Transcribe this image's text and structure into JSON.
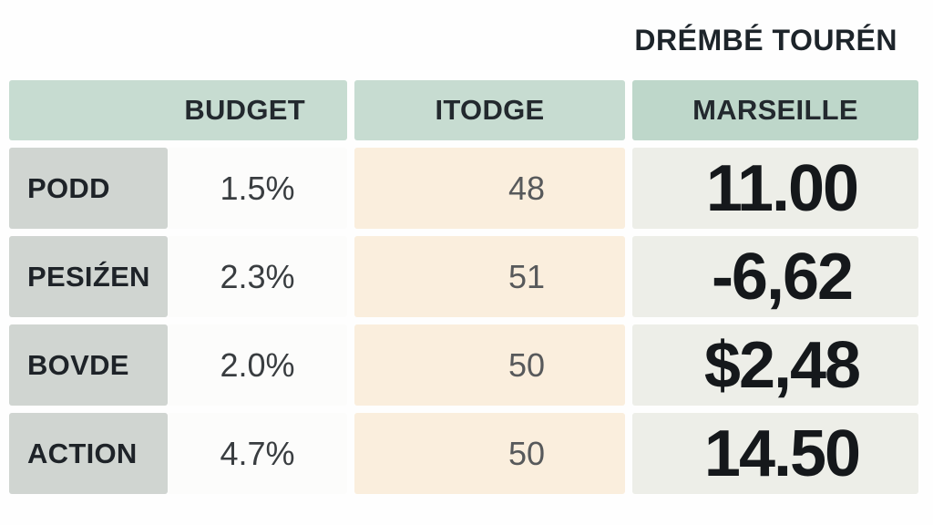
{
  "title": "DRÉMBÉ TOURÉN",
  "table": {
    "headers": [
      "BUDGET",
      "ITODGE",
      "MARSEILLE"
    ],
    "rows": [
      {
        "label": "PODD",
        "budget": "1.5%",
        "itodge": "48",
        "marseille": "11.00"
      },
      {
        "label": "PESIŹEN",
        "budget": "2.3%",
        "itodge": "51",
        "marseille": "-6,62"
      },
      {
        "label": "BOVDE",
        "budget": "2.0%",
        "itodge": "50",
        "marseille": "$2,48"
      },
      {
        "label": "ACTION",
        "budget": "4.7%",
        "itodge": "50",
        "marseille": "14.50"
      }
    ]
  },
  "colors": {
    "header_green": "#c7dcd1",
    "header_green_dark": "#bed7ca",
    "label_gray_green": "#d0d5d1",
    "budget_white": "#fcfcfb",
    "itodge_cream": "#faeedd",
    "marseille_gray": "#edeee8",
    "text_dark": "#15181b",
    "text_gray": "#57595b"
  },
  "chart_data": {
    "type": "table",
    "title": "DRÉMBÉ TOURÉN",
    "columns": [
      "",
      "BUDGET",
      "ITODGE",
      "MARSEILLE"
    ],
    "rows": [
      [
        "PODD",
        "1.5%",
        48,
        "11.00"
      ],
      [
        "PESIŹEN",
        "2.3%",
        51,
        "-6,62"
      ],
      [
        "BOVDE",
        "2.0%",
        50,
        "$2,48"
      ],
      [
        "ACTION",
        "4.7%",
        50,
        "14.50"
      ]
    ],
    "notes": "Broadcast-style stats table; header row mint green, row labels gray-green, ITODGE column cream, MARSEILLE column large bold values on light gray"
  }
}
